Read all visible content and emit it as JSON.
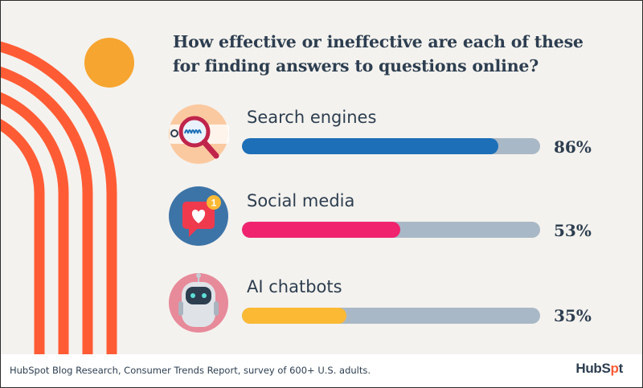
{
  "chart_data": {
    "type": "bar",
    "title": "How effective or ineffective are each of these for finding answers to questions online?",
    "categories": [
      "Search engines",
      "Social media",
      "AI chatbots"
    ],
    "values": [
      86,
      53,
      35
    ],
    "value_labels": [
      "86%",
      "53%",
      "35%"
    ],
    "ylim": [
      0,
      100
    ],
    "orientation": "horizontal",
    "colors": [
      "#1d6fb8",
      "#f0246e",
      "#fbb934"
    ],
    "track_color": "#a9b8c6",
    "icons": [
      "search-magnifier-icon",
      "social-heart-notification-icon",
      "robot-chatbot-icon"
    ]
  },
  "footer": {
    "source": "HubSpot Blog Research, Consumer Trends Report, survey of 600+ U.S. adults.",
    "brand_part1": "HubS",
    "brand_part2": "p",
    "brand_part3": "t"
  },
  "colors": {
    "background": "#f4f2ee",
    "text": "#2d3e50",
    "accent_orange": "#ff5c35",
    "sun": "#f6a530"
  }
}
